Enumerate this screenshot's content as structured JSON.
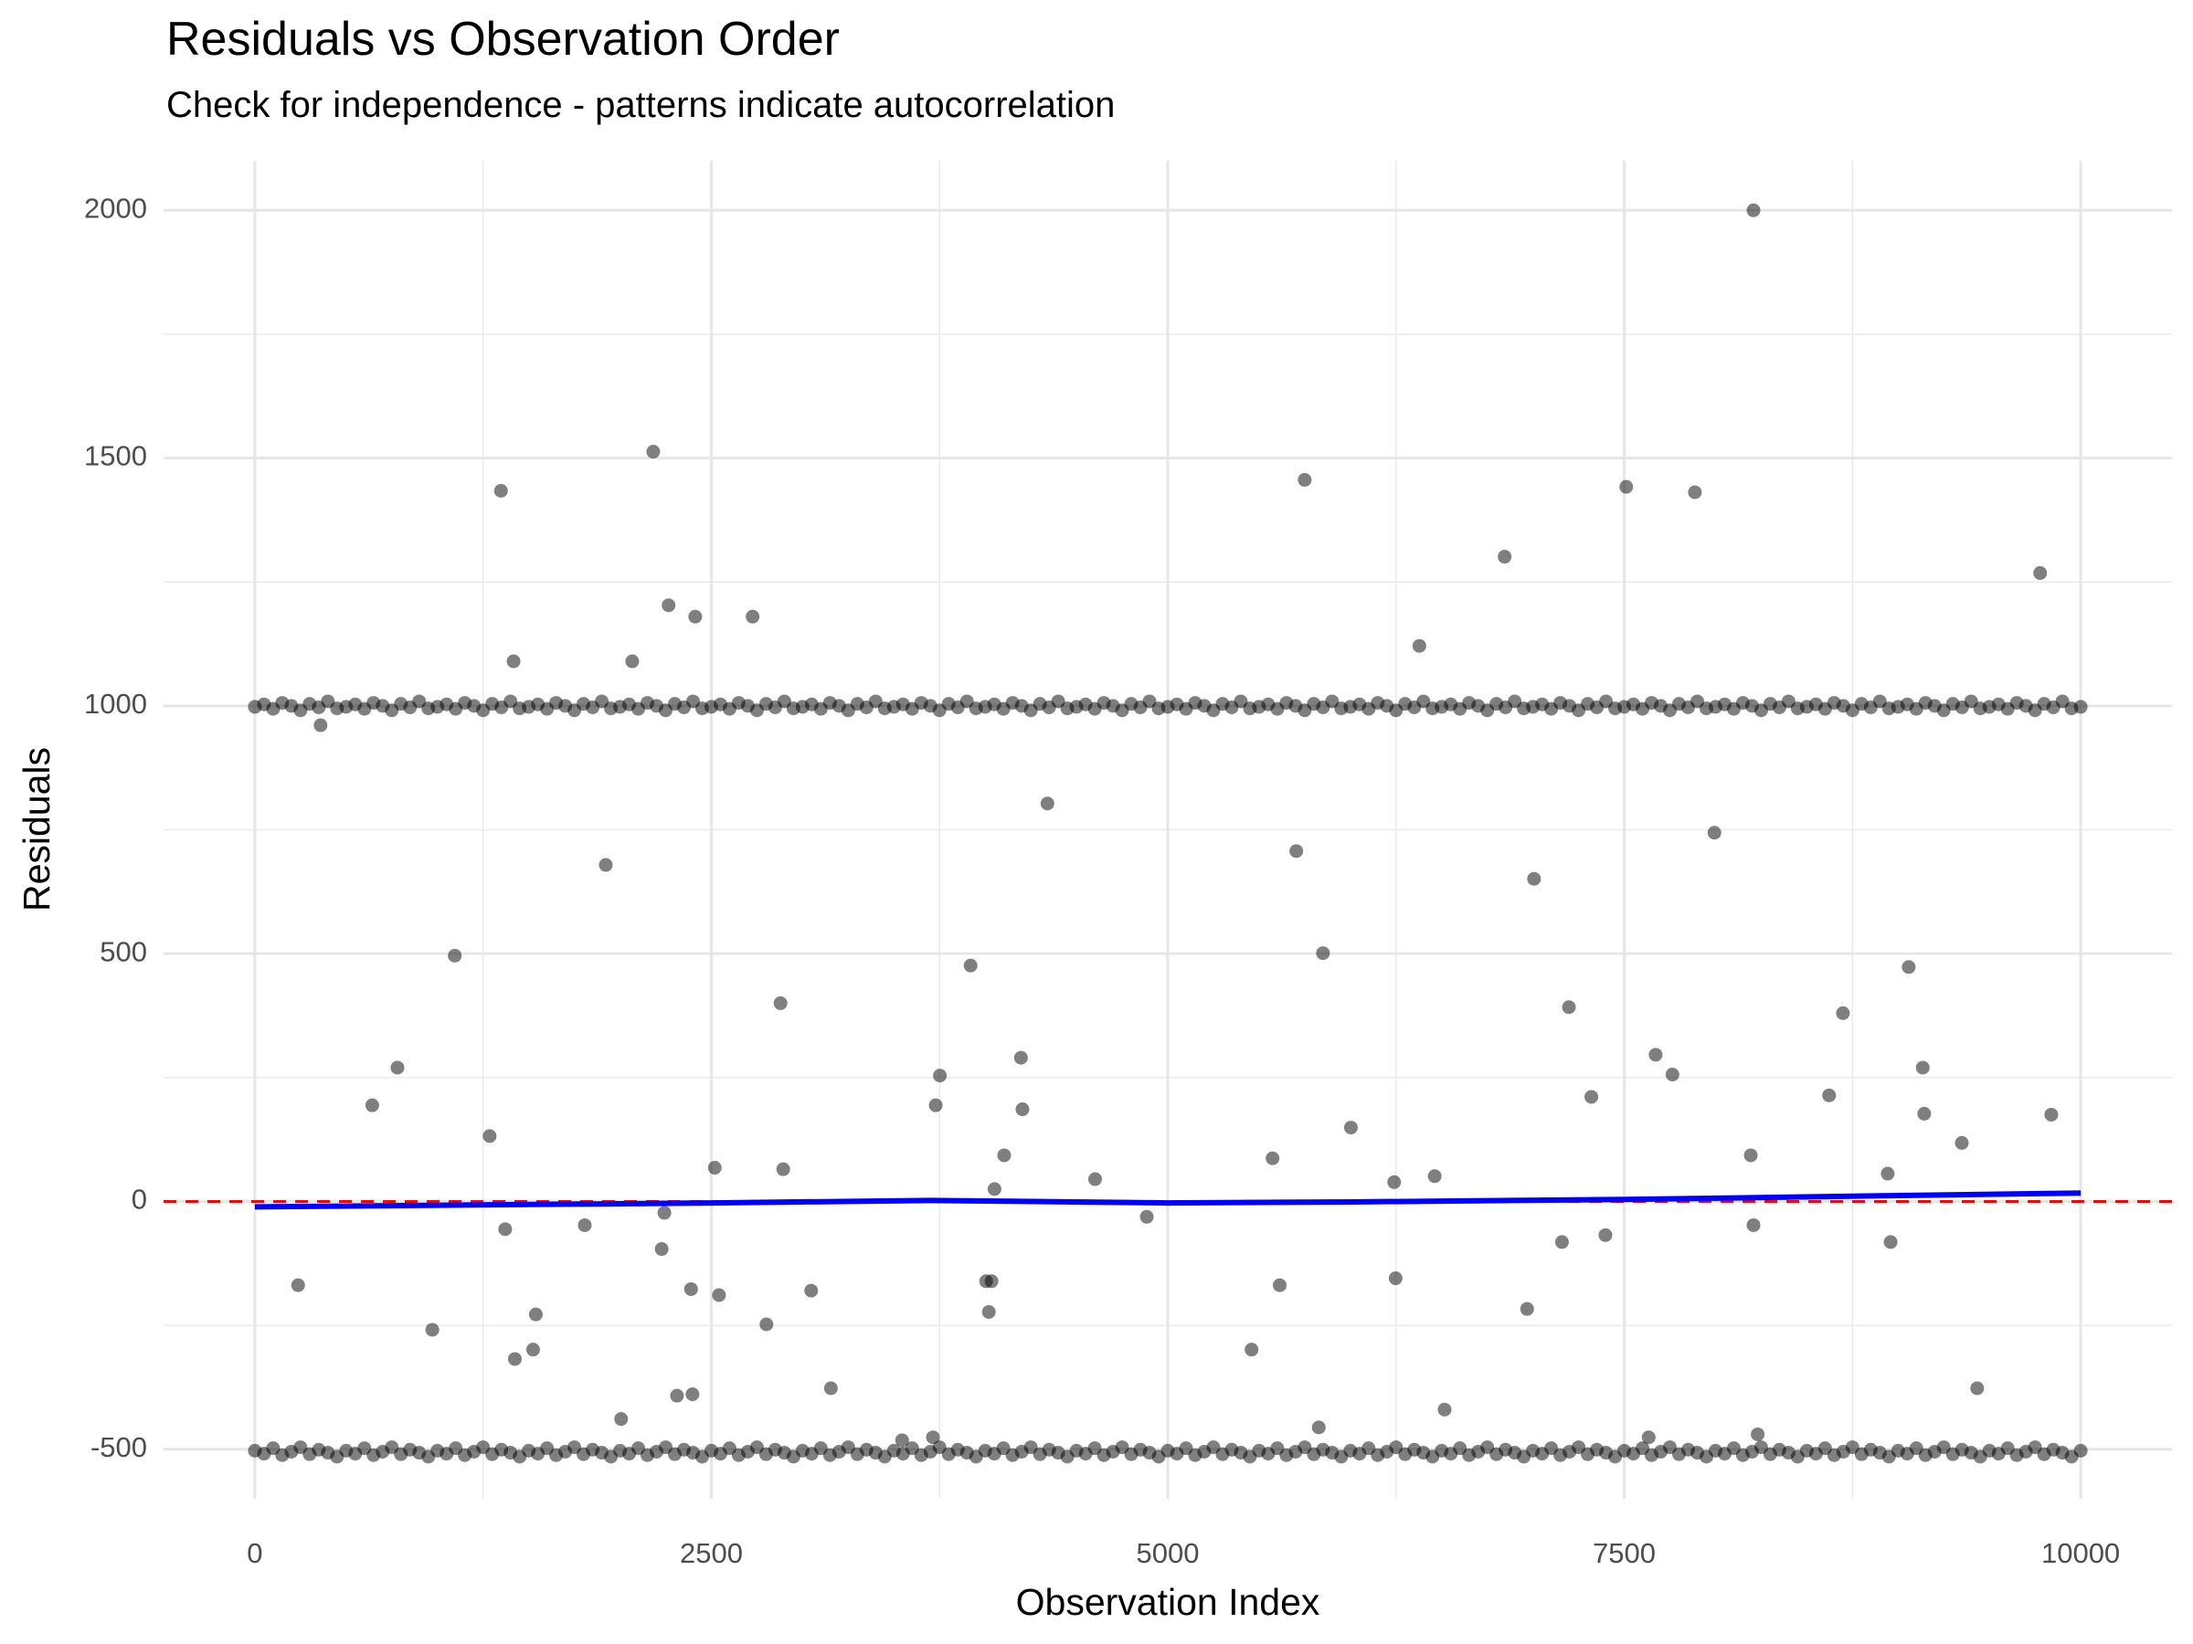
{
  "chart_data": {
    "type": "scatter",
    "title": "Residuals vs Observation Order",
    "subtitle": "Check for independence - patterns indicate autocorrelation",
    "x_label": "Observation Index",
    "y_label": "Residuals",
    "point_color": "#000000",
    "xlim": [
      -500,
      10500
    ],
    "ylim": [
      -600,
      2100
    ],
    "xticks": [
      0,
      2500,
      5000,
      7500,
      10000
    ],
    "yticks": [
      -500,
      0,
      500,
      1000,
      1500,
      2000
    ],
    "grid": true,
    "minor_grid": true,
    "reference_line": {
      "y": 0,
      "color": "#ff0000",
      "dashed": true
    },
    "trend_line": {
      "color": "#0000ff",
      "x": [
        0,
        2500,
        3700,
        5000,
        6000,
        7500,
        10000
      ],
      "y": [
        -11,
        -3,
        2,
        -3,
        -1,
        4,
        17
      ]
    },
    "x": [
      0,
      50,
      100,
      150,
      200,
      250,
      300,
      350,
      400,
      450,
      500,
      550,
      600,
      650,
      700,
      750,
      800,
      850,
      900,
      950,
      1000,
      1050,
      1100,
      1150,
      1200,
      1250,
      1300,
      1350,
      1400,
      1450,
      1500,
      1550,
      1600,
      1650,
      1700,
      1750,
      1800,
      1850,
      1900,
      1950,
      2000,
      2050,
      2100,
      2150,
      2200,
      2250,
      2300,
      2350,
      2400,
      2450,
      2500,
      2550,
      2600,
      2650,
      2700,
      2750,
      2800,
      2850,
      2900,
      2950,
      3000,
      3050,
      3100,
      3150,
      3200,
      3250,
      3300,
      3350,
      3400,
      3450,
      3500,
      3550,
      3600,
      3650,
      3700,
      3750,
      3800,
      3850,
      3900,
      3950,
      4000,
      4050,
      4100,
      4150,
      4200,
      4250,
      4300,
      4350,
      4400,
      4450,
      4500,
      4550,
      4600,
      4650,
      4700,
      4750,
      4800,
      4850,
      4900,
      4950,
      5000,
      5050,
      5100,
      5150,
      5200,
      5250,
      5300,
      5350,
      5400,
      5450,
      5500,
      5550,
      5600,
      5650,
      5700,
      5750,
      5800,
      5850,
      5900,
      5950,
      6000,
      6050,
      6100,
      6150,
      6200,
      6250,
      6300,
      6350,
      6400,
      6450,
      6500,
      6550,
      6600,
      6650,
      6700,
      6750,
      6800,
      6850,
      6900,
      6950,
      7000,
      7050,
      7100,
      7150,
      7200,
      7250,
      7300,
      7350,
      7400,
      7450,
      7500,
      7550,
      7600,
      7650,
      7700,
      7750,
      7800,
      7850,
      7900,
      7950,
      8000,
      8050,
      8100,
      8150,
      8200,
      8250,
      8300,
      8350,
      8400,
      8450,
      8500,
      8550,
      8600,
      8650,
      8700,
      8750,
      8800,
      8850,
      8900,
      8950,
      9000,
      9050,
      9100,
      9150,
      9200,
      9250,
      9300,
      9350,
      9400,
      9450,
      9500,
      9550,
      9600,
      9650,
      9700,
      9750,
      9800,
      9850,
      9900,
      9950,
      10000,
      0,
      50,
      100,
      150,
      200,
      250,
      300,
      350,
      400,
      450,
      500,
      550,
      600,
      650,
      700,
      750,
      800,
      850,
      900,
      950,
      1000,
      1050,
      1100,
      1150,
      1200,
      1250,
      1300,
      1350,
      1400,
      1450,
      1500,
      1550,
      1600,
      1650,
      1700,
      1750,
      1800,
      1850,
      1900,
      1950,
      2000,
      2050,
      2100,
      2150,
      2200,
      2250,
      2300,
      2350,
      2400,
      2450,
      2500,
      2550,
      2600,
      2650,
      2700,
      2750,
      2800,
      2850,
      2900,
      2950,
      3000,
      3050,
      3100,
      3150,
      3200,
      3250,
      3300,
      3350,
      3400,
      3450,
      3500,
      3550,
      3600,
      3650,
      3700,
      3750,
      3800,
      3850,
      3900,
      3950,
      4000,
      4050,
      4100,
      4150,
      4200,
      4250,
      4300,
      4350,
      4400,
      4450,
      4500,
      4550,
      4600,
      4650,
      4700,
      4750,
      4800,
      4850,
      4900,
      4950,
      5000,
      5050,
      5100,
      5150,
      5200,
      5250,
      5300,
      5350,
      5400,
      5450,
      5500,
      5550,
      5600,
      5650,
      5700,
      5750,
      5800,
      5850,
      5900,
      5950,
      6000,
      6050,
      6100,
      6150,
      6200,
      6250,
      6300,
      6350,
      6400,
      6450,
      6500,
      6550,
      6600,
      6650,
      6700,
      6750,
      6800,
      6850,
      6900,
      6950,
      7000,
      7050,
      7100,
      7150,
      7200,
      7250,
      7300,
      7350,
      7400,
      7450,
      7500,
      7550,
      7600,
      7650,
      7700,
      7750,
      7800,
      7850,
      7900,
      7950,
      8000,
      8050,
      8100,
      8150,
      8200,
      8250,
      8300,
      8350,
      8400,
      8450,
      8500,
      8550,
      8600,
      8650,
      8700,
      8750,
      8800,
      8850,
      8900,
      8950,
      9000,
      9050,
      9100,
      9150,
      9200,
      9250,
      9300,
      9350,
      9400,
      9450,
      9500,
      9550,
      9600,
      9650,
      9700,
      9750,
      9800,
      9850,
      9900,
      9950,
      10000,
      8208,
      2182,
      1348,
      5750,
      7511,
      7887,
      6845,
      9778,
      6378,
      2266,
      2412,
      2726,
      1417,
      2067,
      360,
      4341,
      7994,
      1922,
      5704,
      7006,
      1095,
      3920,
      5850,
      9058,
      2879,
      7197,
      8698,
      4196,
      7672,
      781,
      9135,
      3752,
      7764,
      643,
      3729,
      7320,
      8622,
      4204,
      9143,
      9839,
      6003,
      1286,
      9349,
      4104,
      5574,
      8193,
      2519,
      2894,
      4602,
      6240,
      6462,
      8943,
      4051,
      2243,
      4885,
      1371,
      1807,
      8208,
      7159,
      7397,
      8959,
      2228,
      237,
      2389,
      2542,
      3047,
      4005,
      4035,
      5613,
      6248,
      6968,
      4020,
      1539,
      2802,
      972,
      1524,
      5459,
      1424,
      3155,
      9433,
      2397,
      2312,
      2006,
      5827,
      6516,
      8231,
      7634,
      3714,
      3545
    ],
    "y": [
      998,
      1003,
      994,
      1006,
      1000,
      991,
      1004,
      997,
      1009,
      995,
      998,
      1003,
      994,
      1006,
      1000,
      991,
      1004,
      997,
      1009,
      995,
      998,
      1003,
      994,
      1006,
      1000,
      991,
      1004,
      997,
      1009,
      995,
      998,
      1003,
      994,
      1006,
      1000,
      991,
      1004,
      997,
      1009,
      995,
      998,
      1003,
      994,
      1006,
      1000,
      991,
      1004,
      997,
      1009,
      995,
      998,
      1003,
      994,
      1006,
      1000,
      991,
      1004,
      997,
      1009,
      995,
      998,
      1003,
      994,
      1006,
      1000,
      991,
      1004,
      997,
      1009,
      995,
      998,
      1003,
      994,
      1006,
      1000,
      991,
      1004,
      997,
      1009,
      995,
      998,
      1003,
      994,
      1006,
      1000,
      991,
      1004,
      997,
      1009,
      995,
      998,
      1003,
      994,
      1006,
      1000,
      991,
      1004,
      997,
      1009,
      995,
      998,
      1003,
      994,
      1006,
      1000,
      991,
      1004,
      997,
      1009,
      995,
      998,
      1003,
      994,
      1006,
      1000,
      991,
      1004,
      997,
      1009,
      995,
      998,
      1003,
      994,
      1006,
      1000,
      991,
      1004,
      997,
      1009,
      995,
      998,
      1003,
      994,
      1006,
      1000,
      991,
      1004,
      997,
      1009,
      995,
      998,
      1003,
      994,
      1006,
      1000,
      991,
      1004,
      997,
      1009,
      995,
      998,
      1003,
      994,
      1006,
      1000,
      991,
      1004,
      997,
      1009,
      995,
      998,
      1003,
      994,
      1006,
      1000,
      991,
      1004,
      997,
      1009,
      995,
      998,
      1003,
      994,
      1006,
      1000,
      991,
      1004,
      997,
      1009,
      995,
      998,
      1003,
      994,
      1006,
      1000,
      991,
      1004,
      997,
      1009,
      995,
      998,
      1003,
      994,
      1006,
      1000,
      991,
      1004,
      997,
      1009,
      995,
      998,
      -503,
      -509,
      -498,
      -512,
      -505,
      -496,
      -510,
      -501,
      -507,
      -515,
      -503,
      -509,
      -498,
      -512,
      -505,
      -496,
      -510,
      -501,
      -507,
      -515,
      -503,
      -509,
      -498,
      -512,
      -505,
      -496,
      -510,
      -501,
      -507,
      -515,
      -503,
      -509,
      -498,
      -512,
      -505,
      -496,
      -510,
      -501,
      -507,
      -515,
      -503,
      -509,
      -498,
      -512,
      -505,
      -496,
      -510,
      -501,
      -507,
      -515,
      -503,
      -509,
      -498,
      -512,
      -505,
      -496,
      -510,
      -501,
      -507,
      -515,
      -503,
      -509,
      -498,
      -512,
      -505,
      -496,
      -510,
      -501,
      -507,
      -515,
      -503,
      -509,
      -498,
      -512,
      -505,
      -496,
      -510,
      -501,
      -507,
      -515,
      -503,
      -509,
      -498,
      -512,
      -505,
      -496,
      -510,
      -501,
      -507,
      -515,
      -503,
      -509,
      -498,
      -512,
      -505,
      -496,
      -510,
      -501,
      -507,
      -515,
      -503,
      -509,
      -498,
      -512,
      -505,
      -496,
      -510,
      -501,
      -507,
      -515,
      -503,
      -509,
      -498,
      -512,
      -505,
      -496,
      -510,
      -501,
      -507,
      -515,
      -503,
      -509,
      -498,
      -512,
      -505,
      -496,
      -510,
      -501,
      -507,
      -515,
      -503,
      -509,
      -498,
      -512,
      -505,
      -496,
      -510,
      -501,
      -507,
      -515,
      -503,
      -509,
      -498,
      -512,
      -505,
      -496,
      -510,
      -501,
      -507,
      -515,
      -503,
      -509,
      -498,
      -512,
      -505,
      -496,
      -510,
      -501,
      -507,
      -515,
      -503,
      -509,
      -498,
      -512,
      -505,
      -496,
      -510,
      -501,
      -507,
      -515,
      -503,
      -509,
      -498,
      -512,
      -505,
      -496,
      -510,
      -501,
      -507,
      -515,
      -503,
      -509,
      -498,
      -512,
      -505,
      -496,
      -510,
      -501,
      -507,
      -515,
      -503,
      -509,
      -498,
      -512,
      -505,
      -496,
      -510,
      -501,
      -507,
      -515,
      -503,
      2000,
      1513,
      1434,
      1456,
      1442,
      1431,
      1301,
      1268,
      1121,
      1203,
      1180,
      1180,
      1090,
      1090,
      961,
      803,
      744,
      679,
      707,
      651,
      496,
      476,
      501,
      473,
      400,
      392,
      380,
      290,
      296,
      270,
      270,
      254,
      256,
      194,
      194,
      211,
      214,
      186,
      177,
      175,
      149,
      132,
      118,
      93,
      87,
      93,
      68,
      65,
      45,
      39,
      51,
      56,
      25,
      -23,
      -31,
      -56,
      -48,
      -48,
      -82,
      -68,
      -82,
      -96,
      -169,
      -177,
      -189,
      -180,
      -161,
      -161,
      -169,
      -155,
      -217,
      -223,
      -228,
      -248,
      -259,
      -299,
      -299,
      -318,
      -377,
      -377,
      -389,
      -392,
      -439,
      -456,
      -420,
      -470,
      -476,
      -476,
      -482
    ]
  }
}
